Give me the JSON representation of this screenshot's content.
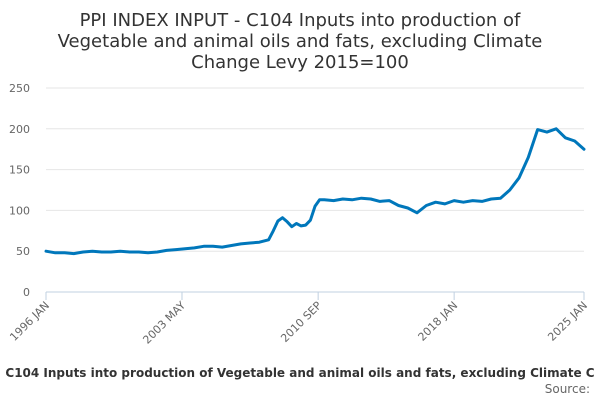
{
  "chart_data": {
    "type": "line",
    "title_lines": [
      "PPI INDEX INPUT - C104 Inputs into production of",
      "Vegetable and animal oils and fats, excluding Climate",
      "Change Levy 2015=100"
    ],
    "xlabel": "C104 Inputs into production of Vegetable and animal oils and fats, excluding Climate C",
    "ylabel": "",
    "source": "Source:",
    "x_tick_labels": [
      "1996 JAN",
      "2003 MAY",
      "2010 SEP",
      "2018 JAN",
      "2025 JAN"
    ],
    "x_tick_years": [
      1996.0,
      2003.33,
      2010.67,
      2018.0,
      2025.0
    ],
    "y_ticks": [
      0,
      50,
      100,
      150,
      200,
      250
    ],
    "ylim": [
      0,
      250
    ],
    "xlim": [
      1996.0,
      2025.0
    ],
    "grid": true,
    "legend": "none",
    "color": "#0077bb",
    "series": [
      {
        "name": "C104 Inputs into production of Vegetable and animal oils and fats, excluding Climate Change Levy",
        "x": [
          1996.0,
          1996.5,
          1997.0,
          1997.5,
          1998.0,
          1998.5,
          1999.0,
          1999.5,
          2000.0,
          2000.5,
          2001.0,
          2001.5,
          2002.0,
          2002.5,
          2003.0,
          2003.5,
          2004.0,
          2004.5,
          2005.0,
          2005.5,
          2006.0,
          2006.5,
          2007.0,
          2007.5,
          2008.0,
          2008.25,
          2008.5,
          2008.75,
          2009.0,
          2009.25,
          2009.5,
          2009.75,
          2010.0,
          2010.25,
          2010.5,
          2010.75,
          2011.0,
          2011.5,
          2012.0,
          2012.5,
          2013.0,
          2013.5,
          2014.0,
          2014.5,
          2015.0,
          2015.5,
          2016.0,
          2016.5,
          2017.0,
          2017.5,
          2018.0,
          2018.5,
          2019.0,
          2019.5,
          2020.0,
          2020.5,
          2021.0,
          2021.5,
          2022.0,
          2022.5,
          2023.0,
          2023.5,
          2024.0,
          2024.5,
          2025.0
        ],
        "values": [
          50,
          48,
          48,
          47,
          49,
          50,
          49,
          49,
          50,
          49,
          49,
          48,
          49,
          51,
          52,
          53,
          54,
          56,
          56,
          55,
          57,
          59,
          60,
          61,
          64,
          75,
          87,
          91,
          86,
          80,
          84,
          81,
          82,
          88,
          105,
          113,
          113,
          112,
          114,
          113,
          115,
          114,
          111,
          112,
          106,
          103,
          97,
          106,
          110,
          108,
          112,
          110,
          112,
          111,
          114,
          115,
          125,
          140,
          165,
          199,
          196,
          200,
          189,
          185,
          175
        ]
      }
    ]
  }
}
